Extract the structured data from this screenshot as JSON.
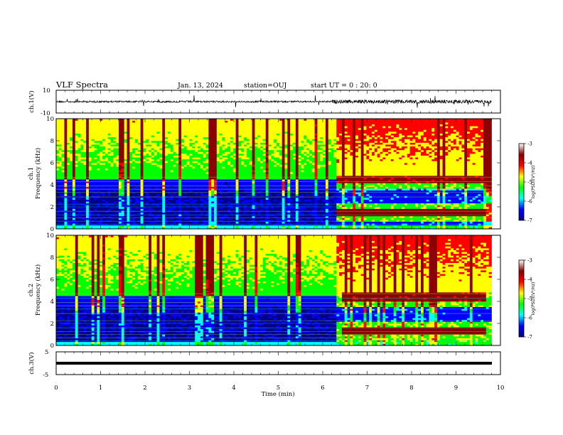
{
  "header": {
    "title": "VLF Spectra",
    "date": "Jan. 13, 2024",
    "station": "station=OUJ",
    "start": "start UT =  0 : 20: 0"
  },
  "colors": {
    "colormap": [
      "#00008b",
      "#0000ff",
      "#00ffff",
      "#00ff00",
      "#ffff00",
      "#ff0000",
      "#8b0000",
      "#ffffff"
    ]
  },
  "chart_data": [
    {
      "type": "line",
      "name": "ch1-waveform",
      "ylabel": "ch.1(V)",
      "ylim": [
        -10,
        10
      ],
      "yticks": [
        "10",
        "-10"
      ],
      "xlim": [
        0,
        10
      ],
      "x": [
        0,
        1,
        2,
        3,
        4,
        5,
        6,
        6.5,
        7,
        8,
        9,
        9.8
      ],
      "y": [
        0,
        0,
        0,
        0,
        0,
        0,
        0,
        0,
        0,
        0,
        0,
        0
      ]
    },
    {
      "type": "heatmap",
      "name": "ch1-spectrogram",
      "ylabel": "ch.1\nFrequency (kHz)",
      "ylabel_lines": [
        "ch.1",
        "Frequency (kHz)"
      ],
      "ylim": [
        0,
        10
      ],
      "yticks": [
        "0",
        "2",
        "4",
        "6",
        "8",
        "10"
      ],
      "xlim": [
        0,
        10
      ],
      "data_end_min": 9.8,
      "colorbar": {
        "label": "log(PSD)(V²/Hz)",
        "range": [
          -7,
          -3
        ],
        "ticks": [
          "-3",
          "-4",
          "-5",
          "-6",
          "-7"
        ]
      },
      "features": [
        {
          "x_start": 6.3,
          "x_end": 9.8,
          "freq_khz": 4.5,
          "level": -3.4
        },
        {
          "x_start": 6.3,
          "x_end": 9.8,
          "freq_khz": 1.5,
          "level": -3.2
        }
      ]
    },
    {
      "type": "heatmap",
      "name": "ch2-spectrogram",
      "ylabel": "ch.2\nFrequency (kHz)",
      "ylabel_lines": [
        "ch.2",
        "Frequency (kHz)"
      ],
      "ylim": [
        0,
        10
      ],
      "yticks": [
        "0",
        "2",
        "4",
        "6",
        "8",
        "10"
      ],
      "xlim": [
        0,
        10
      ],
      "data_end_min": 9.8,
      "colorbar": {
        "label": "log(PSD)(V²/Hz)",
        "range": [
          -7,
          -3
        ],
        "ticks": [
          "-3",
          "-4",
          "-5",
          "-6",
          "-7"
        ]
      },
      "features": [
        {
          "x_start": 6.3,
          "x_end": 9.8,
          "freq_khz": 4.4,
          "level": -3.4
        },
        {
          "x_start": 6.3,
          "x_end": 9.8,
          "freq_khz": 1.3,
          "level": -3.0
        }
      ]
    },
    {
      "type": "line",
      "name": "ch3-waveform",
      "ylabel": "ch.3(V)",
      "ylim": [
        -5,
        5
      ],
      "yticks": [
        "5",
        "0",
        "-5"
      ],
      "xlim": [
        0,
        10
      ],
      "xlabel": "Time (min)",
      "xticks": [
        "0",
        "1",
        "2",
        "3",
        "4",
        "5",
        "6",
        "7",
        "8",
        "9",
        "10"
      ],
      "x": [
        0,
        9.8
      ],
      "y": [
        0,
        0
      ]
    }
  ]
}
